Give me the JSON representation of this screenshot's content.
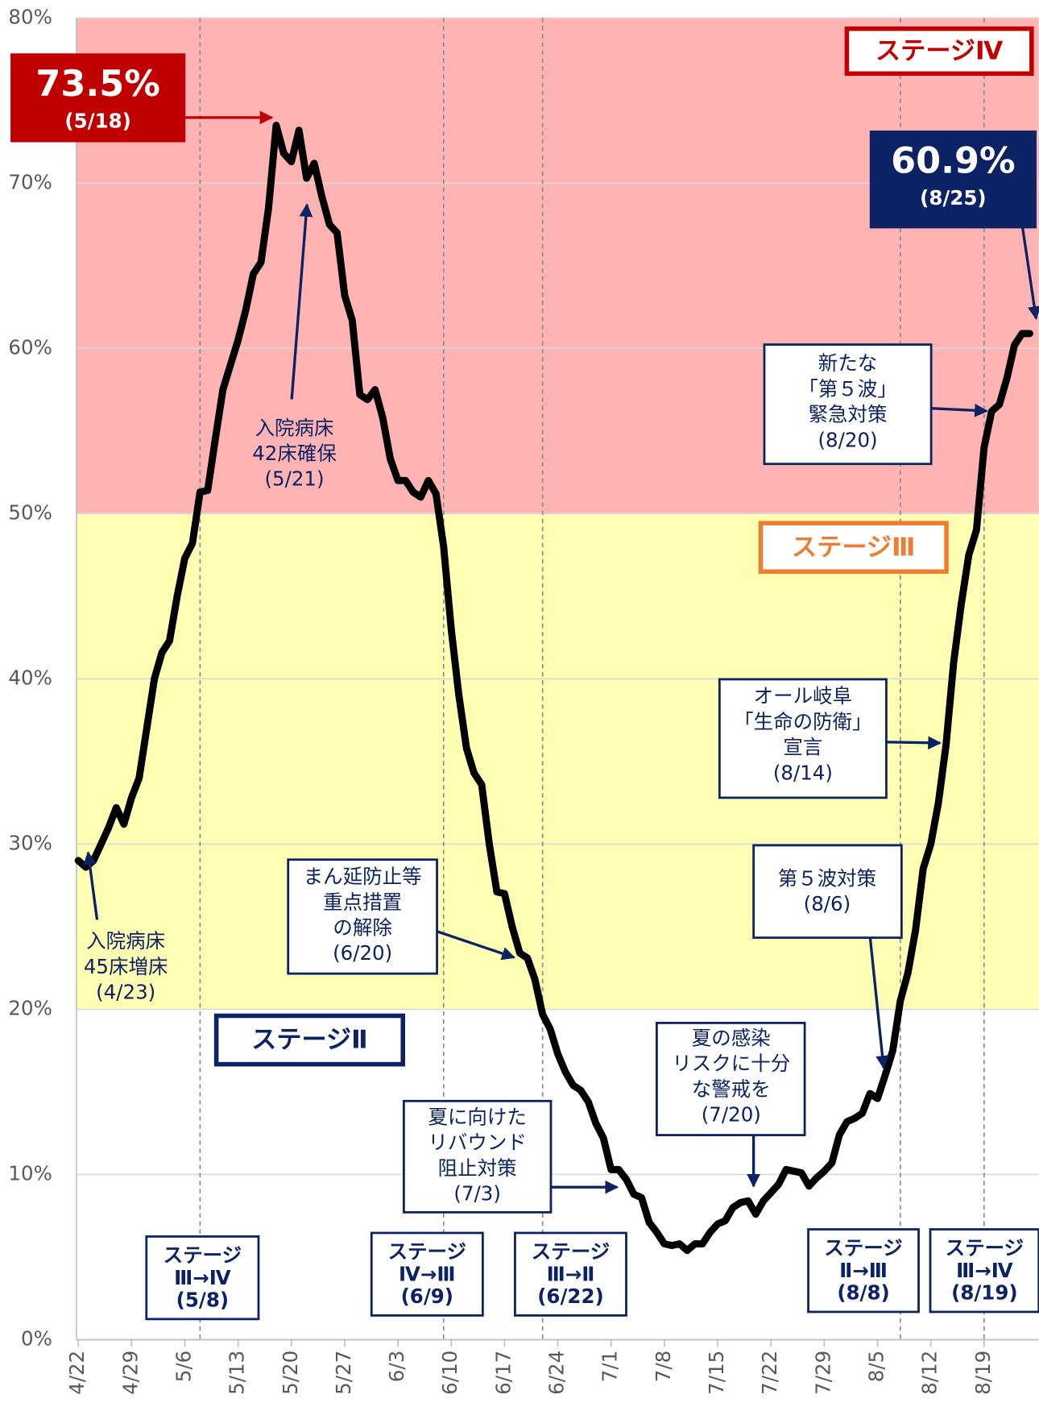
{
  "chart_data": {
    "type": "line",
    "categories": [
      "4/22",
      null,
      null,
      null,
      null,
      null,
      null,
      "4/29",
      null,
      null,
      null,
      null,
      null,
      null,
      "5/6",
      null,
      null,
      null,
      null,
      null,
      null,
      "5/13",
      null,
      null,
      null,
      null,
      null,
      null,
      "5/20",
      null,
      null,
      null,
      null,
      null,
      null,
      "5/27",
      null,
      null,
      null,
      null,
      null,
      null,
      "6/3",
      null,
      null,
      null,
      null,
      null,
      null,
      "6/10",
      null,
      null,
      null,
      null,
      null,
      null,
      "6/17",
      null,
      null,
      null,
      null,
      null,
      null,
      "6/24",
      null,
      null,
      null,
      null,
      null,
      null,
      "7/1",
      null,
      null,
      null,
      null,
      null,
      null,
      "7/8",
      null,
      null,
      null,
      null,
      null,
      null,
      "7/15",
      null,
      null,
      null,
      null,
      null,
      null,
      "7/22",
      null,
      null,
      null,
      null,
      null,
      null,
      "7/29",
      null,
      null,
      null,
      null,
      null,
      null,
      "8/5",
      null,
      null,
      null,
      null,
      null,
      null,
      "8/12",
      null,
      null,
      null,
      null,
      null,
      null,
      "8/19",
      null,
      null,
      null,
      null,
      null,
      null
    ],
    "series": [
      {
        "color": "#000000",
        "values": [
          29,
          28.6,
          29,
          30,
          31,
          32.2,
          31.2,
          32.8,
          34,
          37,
          40,
          41.6,
          42.3,
          45,
          47.3,
          48.2,
          51.3,
          51.4,
          54.5,
          57.5,
          59,
          60.5,
          62.3,
          64.5,
          65.2,
          68.5,
          73.5,
          71.8,
          71.3,
          73.2,
          70.3,
          71.2,
          69.2,
          67.5,
          67,
          63.2,
          61.7,
          57.2,
          56.9,
          57.5,
          55.8,
          53.3,
          52,
          52,
          51.3,
          51,
          52,
          51.2,
          48,
          43,
          39,
          35.8,
          34.3,
          33.6,
          30,
          27.1,
          27,
          25,
          23.4,
          23.1,
          21.8,
          19.7,
          18.8,
          17.3,
          16.2,
          15.4,
          15.1,
          14.4,
          13.1,
          12.2,
          10.3,
          10.3,
          9.7,
          8.8,
          8.6,
          7.1,
          6.5,
          5.8,
          5.7,
          5.8,
          5.4,
          5.8,
          5.8,
          6.5,
          7,
          7.2,
          8,
          8.3,
          8.4,
          7.6,
          8.4,
          8.9,
          9.4,
          10.3,
          10.2,
          10.1,
          9.3,
          9.8,
          10.2,
          10.7,
          12.4,
          13.2,
          13.4,
          13.7,
          14.9,
          14.6,
          16,
          17.5,
          20.5,
          22.2,
          24.8,
          28.5,
          30,
          32.5,
          36,
          41,
          44.5,
          47.5,
          49,
          54,
          56.2,
          56.6,
          58.2,
          60.2,
          60.9,
          60.9
        ]
      }
    ],
    "ylim": [
      0,
      80
    ],
    "yticks": [
      {
        "value": 0,
        "label": "0%"
      },
      {
        "value": 10,
        "label": "10%"
      },
      {
        "value": 20,
        "label": "20%"
      },
      {
        "value": 30,
        "label": "30%"
      },
      {
        "value": 40,
        "label": "40%"
      },
      {
        "value": 50,
        "label": "50%"
      },
      {
        "value": 60,
        "label": "60%"
      },
      {
        "value": 70,
        "label": "70%"
      },
      {
        "value": 80,
        "label": "80%"
      }
    ],
    "grid": true,
    "stages": [
      {
        "name": "ステージⅣ",
        "from": 50,
        "to": 80,
        "color": "#ffb3b3",
        "label_color": "#c00000"
      },
      {
        "name": "ステージⅢ",
        "from": 20,
        "to": 50,
        "color": "#ffffb3",
        "label_color": "#ed7d31"
      },
      {
        "name": "ステージⅡ",
        "from": 0,
        "to": 20,
        "color": "#ffffff",
        "label_color": "#0b2265"
      }
    ],
    "stage_changes": [
      {
        "x_index": 16,
        "lines": [
          "ステージ",
          "Ⅲ→Ⅳ",
          "(5/8)"
        ]
      },
      {
        "x_index": 48,
        "lines": [
          "ステージ",
          "Ⅳ→Ⅲ",
          "(6/9)"
        ]
      },
      {
        "x_index": 61,
        "lines": [
          "ステージ",
          "Ⅲ→Ⅱ",
          "(6/22)"
        ]
      },
      {
        "x_index": 108,
        "lines": [
          "ステージ",
          "Ⅱ→Ⅲ",
          "(8/8)"
        ]
      },
      {
        "x_index": 119,
        "lines": [
          "ステージ",
          "Ⅲ→Ⅳ",
          "(8/19)"
        ]
      }
    ],
    "callouts": [
      {
        "label": "73.5%",
        "date": "(5/18)",
        "color": "#c00000"
      },
      {
        "label": "60.9%",
        "date": "(8/25)",
        "color": "#0b2265"
      }
    ],
    "annotations": [
      {
        "lines": [
          "入院病床",
          "45床増床",
          "(4/23)"
        ]
      },
      {
        "lines": [
          "入院病床",
          "42床確保",
          "(5/21)"
        ]
      },
      {
        "lines": [
          "まん延防止等",
          "重点措置",
          "の解除",
          "(6/20)"
        ]
      },
      {
        "lines": [
          "夏に向けた",
          "リバウンド",
          "阻止対策",
          "(7/3)"
        ]
      },
      {
        "lines": [
          "夏の感染",
          "リスクに十分",
          "な警戒を",
          "(7/20)"
        ]
      },
      {
        "lines": [
          "第５波対策",
          "(8/6)"
        ]
      },
      {
        "lines": [
          "オール岐阜",
          "「生命の防衛」",
          "宣言",
          "(8/14)"
        ]
      },
      {
        "lines": [
          "新たな",
          "「第５波」",
          "緊急対策",
          "(8/20)"
        ]
      }
    ]
  }
}
